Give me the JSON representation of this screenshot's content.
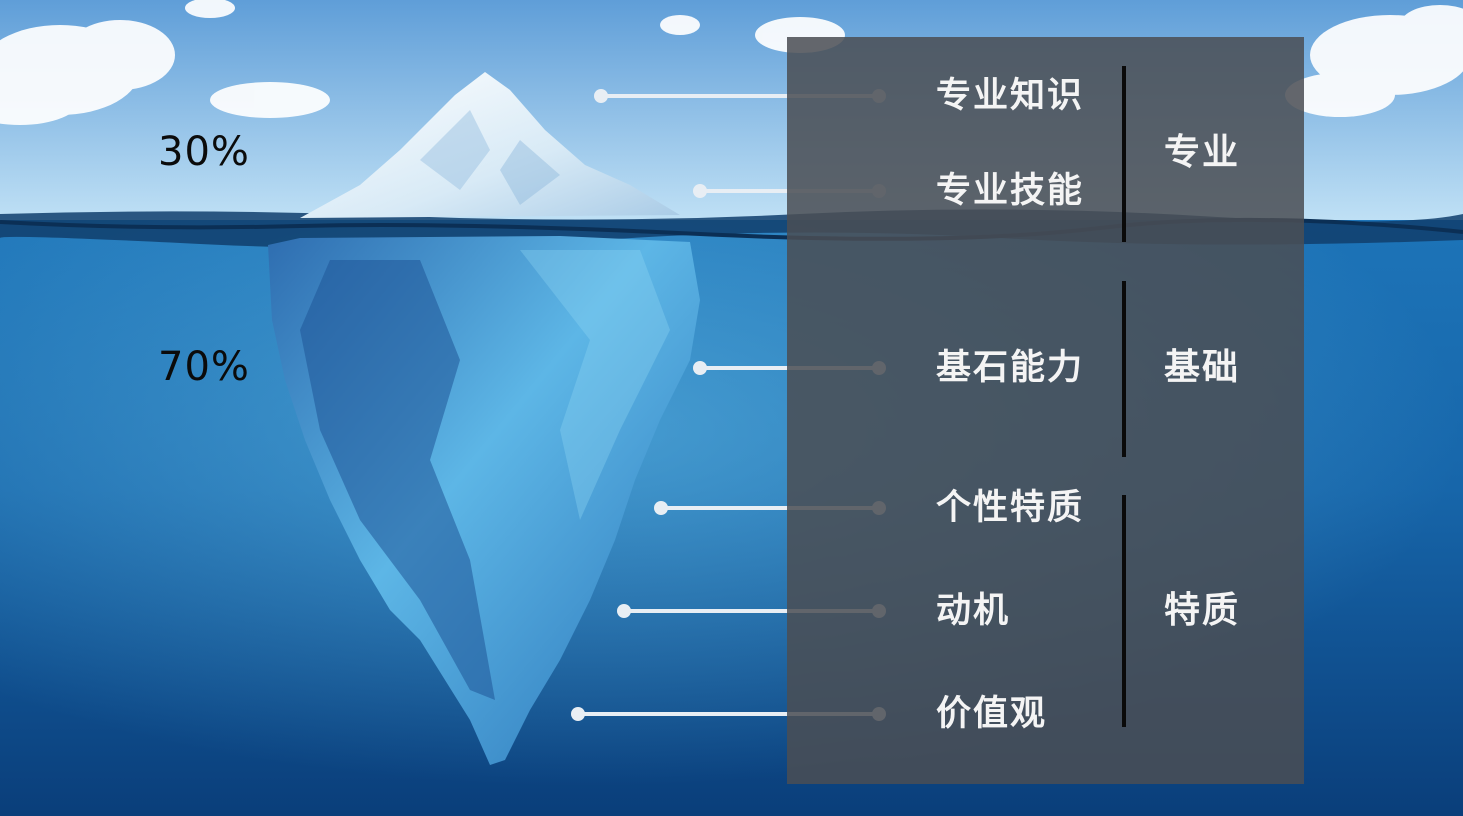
{
  "surface_percent": "30%",
  "underwater_percent": "70%",
  "colors": {
    "sky_top": "#5f9ed8",
    "sky_bottom": "#bfe0f5",
    "sea_top": "#1d74b8",
    "sea_bottom": "#0a3e7a",
    "panel": "#4a4e54",
    "text": "#f4f4f4",
    "bracket": "#0a0a0a"
  },
  "items": [
    {
      "label": "专业知识"
    },
    {
      "label": "专业技能"
    },
    {
      "label": "基石能力"
    },
    {
      "label": "个性特质"
    },
    {
      "label": "动机"
    },
    {
      "label": "价值观"
    }
  ],
  "categories": [
    {
      "label": "专业"
    },
    {
      "label": "基础"
    },
    {
      "label": "特质"
    }
  ]
}
